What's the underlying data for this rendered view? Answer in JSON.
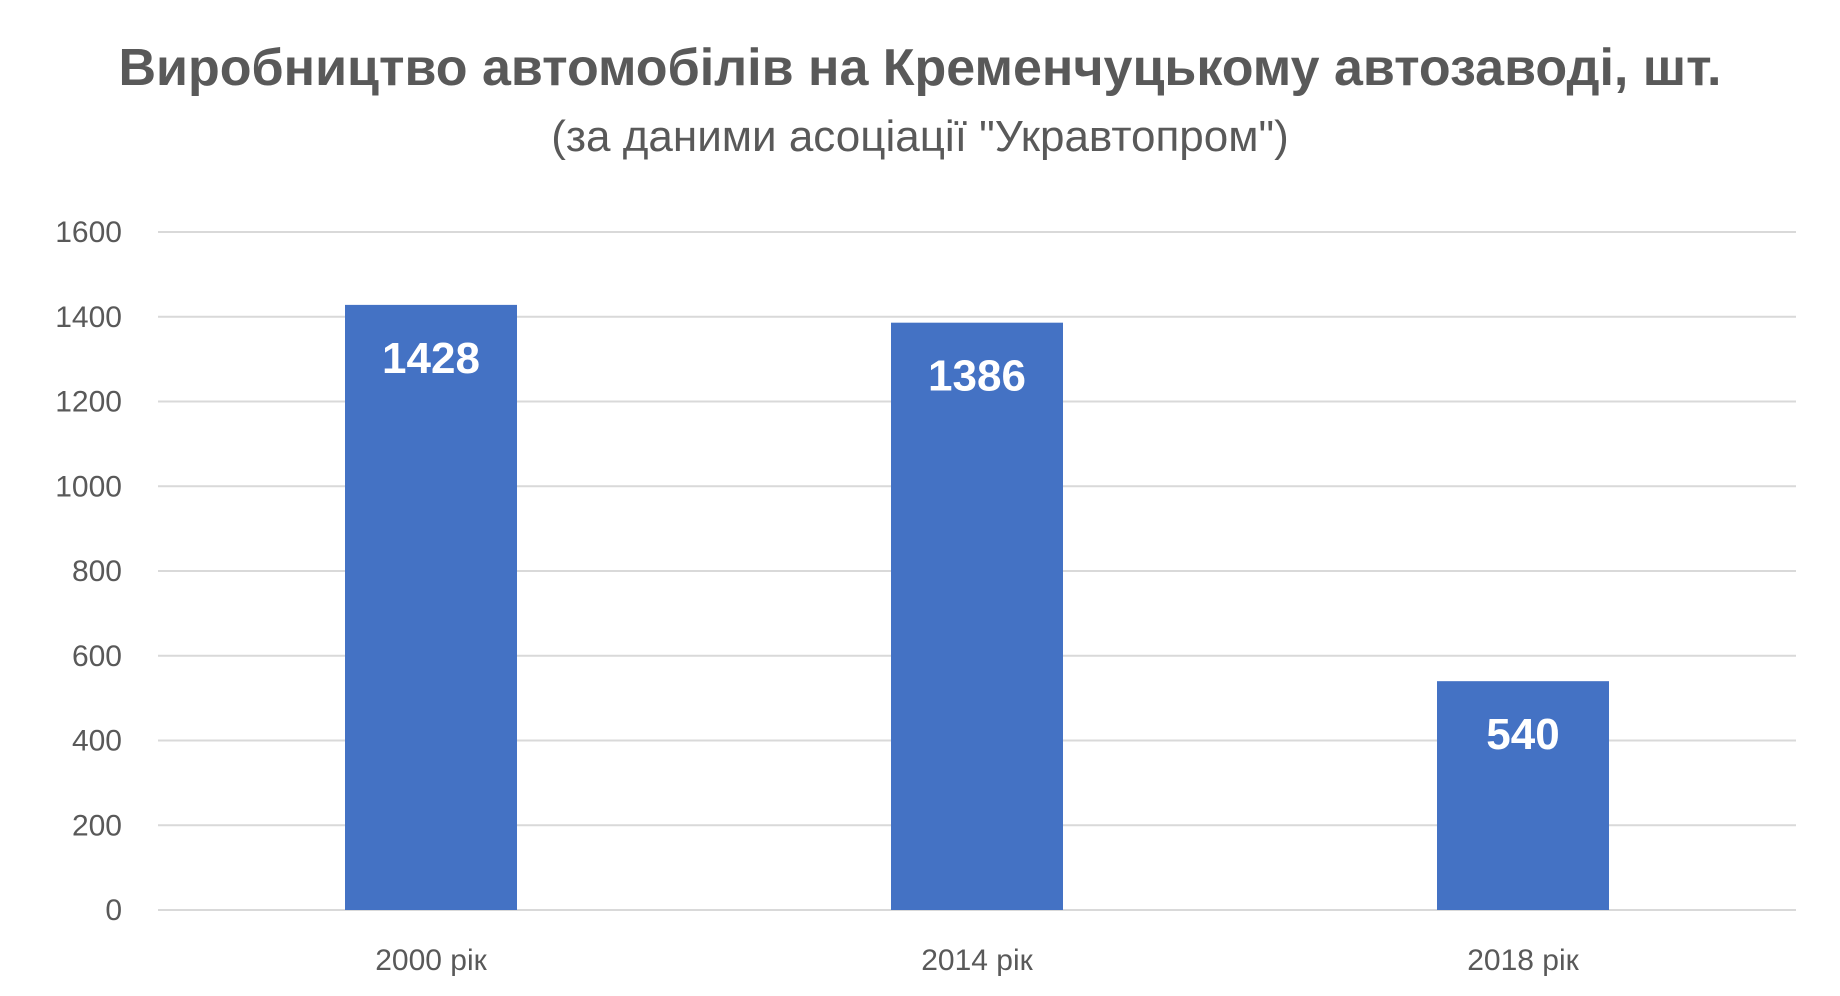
{
  "chart_data": {
    "type": "bar",
    "title": "Виробництво автомобілів на Кременчуцькому автозаводі, шт.",
    "subtitle": "(за даними асоціації \"Укравтопром\")",
    "categories": [
      "2000 рік",
      "2014 рік",
      "2018 рік"
    ],
    "values": [
      1428,
      1386,
      540
    ],
    "data_labels": [
      "1428",
      "1386",
      "540"
    ],
    "yticks": [
      "0",
      "200",
      "400",
      "600",
      "800",
      "1000",
      "1200",
      "1400",
      "1600"
    ],
    "ylim": [
      0,
      1600
    ],
    "xlabel": "",
    "ylabel": "",
    "grid": true,
    "legend": "none",
    "colors": {
      "bar": "#4472c4",
      "grid": "#d9d9d9",
      "text": "#595959",
      "data_label": "#ffffff"
    }
  }
}
